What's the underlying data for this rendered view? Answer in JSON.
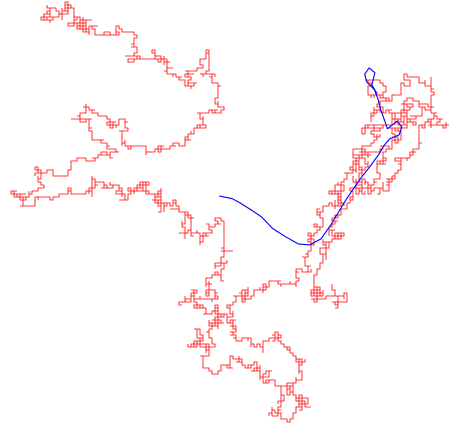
{
  "figure": {
    "background": "#ffffff",
    "lattice_walk": {
      "color": "#ff0000",
      "description_kind": "lattice-random-walk"
    },
    "smooth_walk": {
      "color": "#0000ff",
      "description_kind": "continuous-random-walk"
    }
  }
}
